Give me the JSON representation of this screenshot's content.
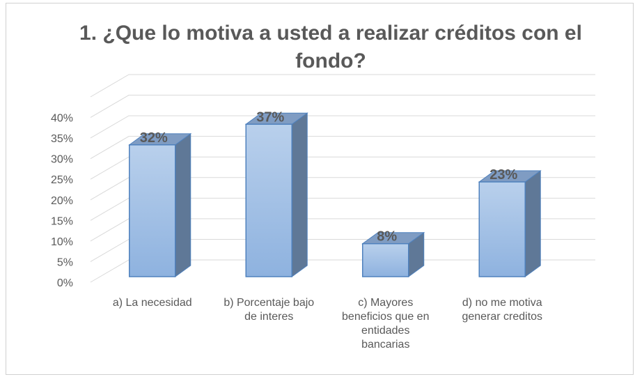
{
  "chart_data": {
    "type": "bar3d",
    "title": "1. ¿Que lo motiva a usted a realizar créditos con el fondo?",
    "categories": [
      "a) La necesidad",
      "b) Porcentaje bajo de interes",
      "c) Mayores beneficios que en entidades bancarias",
      "d) no me motiva generar creditos"
    ],
    "values": [
      32,
      37,
      8,
      23
    ],
    "value_labels": [
      "32%",
      "37%",
      "8%",
      "23%"
    ],
    "color": "#9dbde6",
    "ylim": [
      0,
      45
    ],
    "yticks": [
      {
        "value": 0,
        "label": "0%"
      },
      {
        "value": 5,
        "label": "5%"
      },
      {
        "value": 10,
        "label": "10%"
      },
      {
        "value": 15,
        "label": "15%"
      },
      {
        "value": 20,
        "label": "20%"
      },
      {
        "value": 25,
        "label": "25%"
      },
      {
        "value": 30,
        "label": "30%"
      },
      {
        "value": 35,
        "label": "35%"
      },
      {
        "value": 40,
        "label": "40%"
      }
    ],
    "grid": true
  }
}
